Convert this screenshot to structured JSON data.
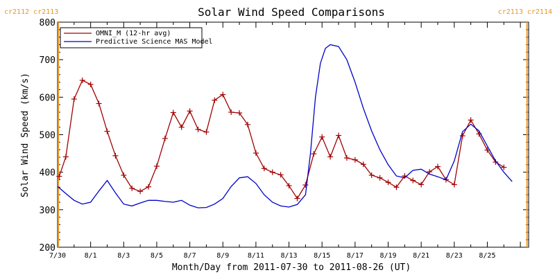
{
  "chart_data": {
    "type": "line",
    "title": "Solar Wind Speed Comparisons",
    "xlabel": "Month/Day from 2011-07-30 to 2011-08-26 (UT)",
    "ylabel": "Solar Wind Speed (km/s)",
    "xlim": [
      0,
      28.5
    ],
    "ylim": [
      200,
      800
    ],
    "yticks": [
      200,
      300,
      400,
      500,
      600,
      700,
      800
    ],
    "xticks": [
      {
        "day": 0,
        "label": "7/30"
      },
      {
        "day": 2,
        "label": "8/1"
      },
      {
        "day": 4,
        "label": "8/3"
      },
      {
        "day": 6,
        "label": "8/5"
      },
      {
        "day": 8,
        "label": "8/7"
      },
      {
        "day": 10,
        "label": "8/9"
      },
      {
        "day": 12,
        "label": "8/11"
      },
      {
        "day": 14,
        "label": "8/13"
      },
      {
        "day": 16,
        "label": "8/15"
      },
      {
        "day": 18,
        "label": "8/17"
      },
      {
        "day": 20,
        "label": "8/19"
      },
      {
        "day": 22,
        "label": "8/21"
      },
      {
        "day": 24,
        "label": "8/23"
      },
      {
        "day": 26,
        "label": "8/25"
      }
    ],
    "grid": false,
    "legend": "top-left",
    "series": [
      {
        "name": "OMNI_M (12-hr avg)",
        "color": "#a00000",
        "marker": "plus",
        "x": [
          0.1,
          0.5,
          1.0,
          1.5,
          2.0,
          2.5,
          3.0,
          3.5,
          4.0,
          4.5,
          5.0,
          5.5,
          6.0,
          6.5,
          7.0,
          7.5,
          8.0,
          8.5,
          9.0,
          9.5,
          10.0,
          10.5,
          11.0,
          11.5,
          12.0,
          12.5,
          13.0,
          13.5,
          14.0,
          14.5,
          15.0,
          15.5,
          16.0,
          16.5,
          17.0,
          17.5,
          18.0,
          18.5,
          19.0,
          19.5,
          20.0,
          20.5,
          21.0,
          21.5,
          22.0,
          22.5,
          23.0,
          23.5,
          24.0,
          24.5,
          25.0,
          25.5,
          26.0,
          26.5,
          27.0,
          27.5
        ],
        "y": [
          389,
          441,
          595,
          645,
          634,
          583,
          509,
          444,
          392,
          357,
          349,
          361,
          416,
          490,
          559,
          520,
          563,
          514,
          507,
          592,
          607,
          560,
          558,
          527,
          451,
          410,
          400,
          393,
          364,
          330,
          366,
          449,
          494,
          441,
          498,
          438,
          433,
          421,
          392,
          385,
          373,
          360,
          390,
          378,
          367,
          401,
          415,
          380,
          367,
          497,
          539,
          502,
          459,
          427,
          413,
          null
        ]
      },
      {
        "name": "Predictive Science MAS Model",
        "color": "#0000c8",
        "x": [
          0,
          0.5,
          1,
          1.5,
          2,
          2.5,
          3,
          3.5,
          4,
          4.5,
          5,
          5.5,
          6,
          6.5,
          7,
          7.5,
          8,
          8.5,
          9,
          9.5,
          10,
          10.5,
          11,
          11.5,
          12,
          12.5,
          13,
          13.5,
          14,
          14.5,
          15,
          15.3,
          15.6,
          15.9,
          16.2,
          16.5,
          17,
          17.5,
          18,
          18.5,
          19,
          19.5,
          20,
          20.5,
          21,
          21.5,
          22,
          22.5,
          23,
          23.5,
          24,
          24.5,
          25,
          25.5,
          26,
          26.5,
          27,
          27.5
        ],
        "y": [
          362,
          343,
          325,
          315,
          320,
          350,
          378,
          345,
          315,
          310,
          318,
          325,
          325,
          322,
          320,
          325,
          312,
          305,
          306,
          315,
          330,
          362,
          385,
          388,
          370,
          340,
          320,
          310,
          307,
          314,
          340,
          450,
          600,
          690,
          730,
          740,
          735,
          700,
          640,
          570,
          510,
          460,
          420,
          390,
          385,
          405,
          408,
          395,
          388,
          380,
          430,
          508,
          528,
          510,
          470,
          430,
          400,
          375
        ]
      }
    ],
    "annotations": {
      "cr_left": "cr2112 cr2113",
      "cr_right": "cr2113 cr2114",
      "cr_left_day": 0.05,
      "cr_right_day": 28.4
    }
  }
}
